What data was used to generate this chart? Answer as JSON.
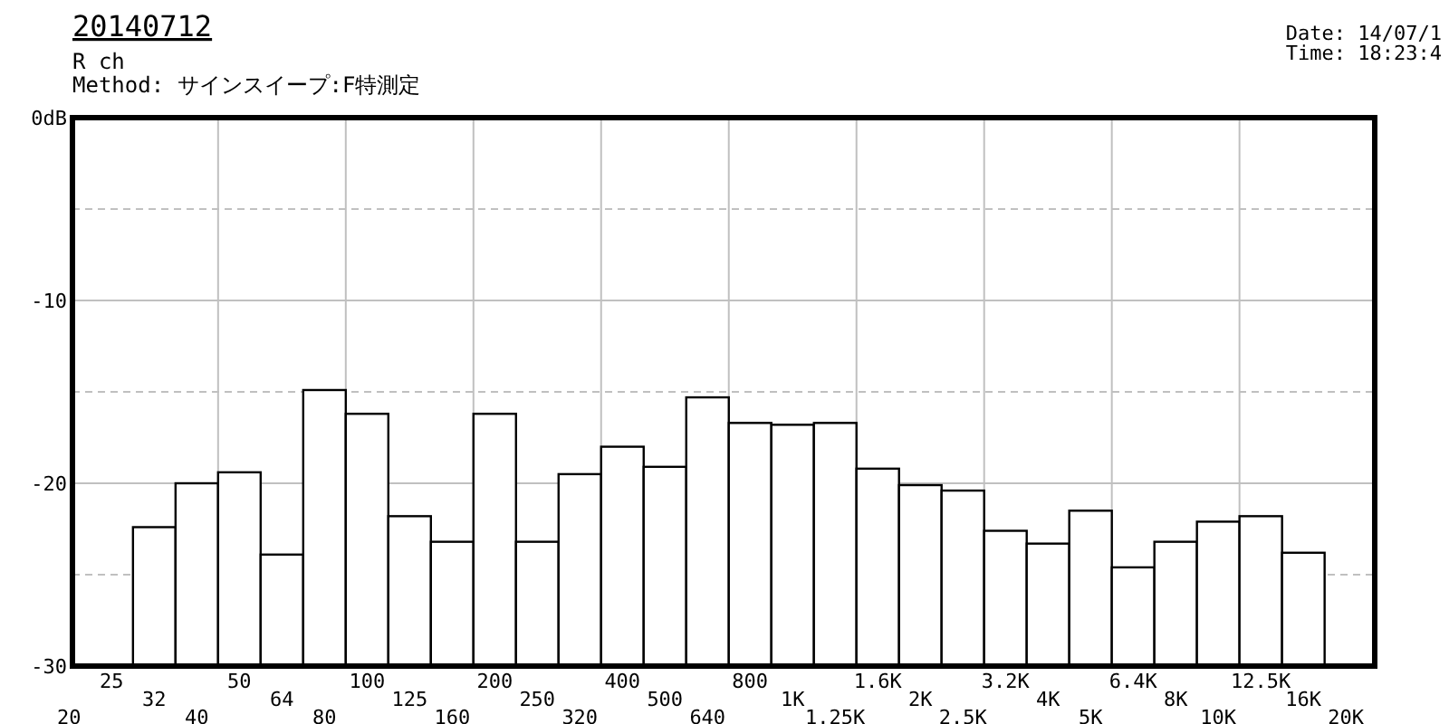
{
  "chart_data": {
    "type": "bar",
    "title": "20140712",
    "subtitle": "R ch\nMethod:  サインスイープ:F特測定",
    "annotations": [
      "Date: 14/07/1",
      "Time: 18:23:4"
    ],
    "categories": [
      "20",
      "25",
      "32",
      "40",
      "50",
      "64",
      "80",
      "100",
      "125",
      "160",
      "200",
      "250",
      "320",
      "400",
      "500",
      "640",
      "800",
      "1K",
      "1.25K",
      "1.6K",
      "2K",
      "2.5K",
      "3.2K",
      "4K",
      "5K",
      "6.4K",
      "8K",
      "10K",
      "12.5K",
      "16K",
      "20K"
    ],
    "values": [
      null,
      null,
      7.6,
      10.0,
      10.6,
      6.1,
      15.1,
      13.8,
      8.2,
      6.8,
      13.8,
      6.8,
      10.5,
      12.0,
      10.9,
      14.7,
      13.3,
      13.2,
      13.3,
      10.8,
      9.9,
      9.6,
      7.4,
      6.7,
      8.5,
      5.4,
      6.8,
      7.9,
      8.2,
      6.2,
      null
    ],
    "base": [
      null,
      null,
      -30,
      -30,
      -30,
      -30,
      -30,
      -30,
      -30,
      -30,
      -30,
      -30,
      -30,
      -30,
      -30,
      -30,
      -30,
      -30,
      -30,
      -30,
      -30,
      -30,
      -30,
      -30,
      -30,
      -30,
      -30,
      -30,
      -30,
      -30,
      null
    ],
    "color": "#ffffff",
    "ylim": [
      -30,
      0
    ],
    "yticks": [
      {
        "value": 0,
        "label": "0dB"
      },
      {
        "value": -5,
        "label": null
      },
      -10,
      {
        "value": -15,
        "label": null
      },
      -20,
      {
        "value": -25,
        "label": null
      },
      -30
    ],
    "grid": true
  }
}
